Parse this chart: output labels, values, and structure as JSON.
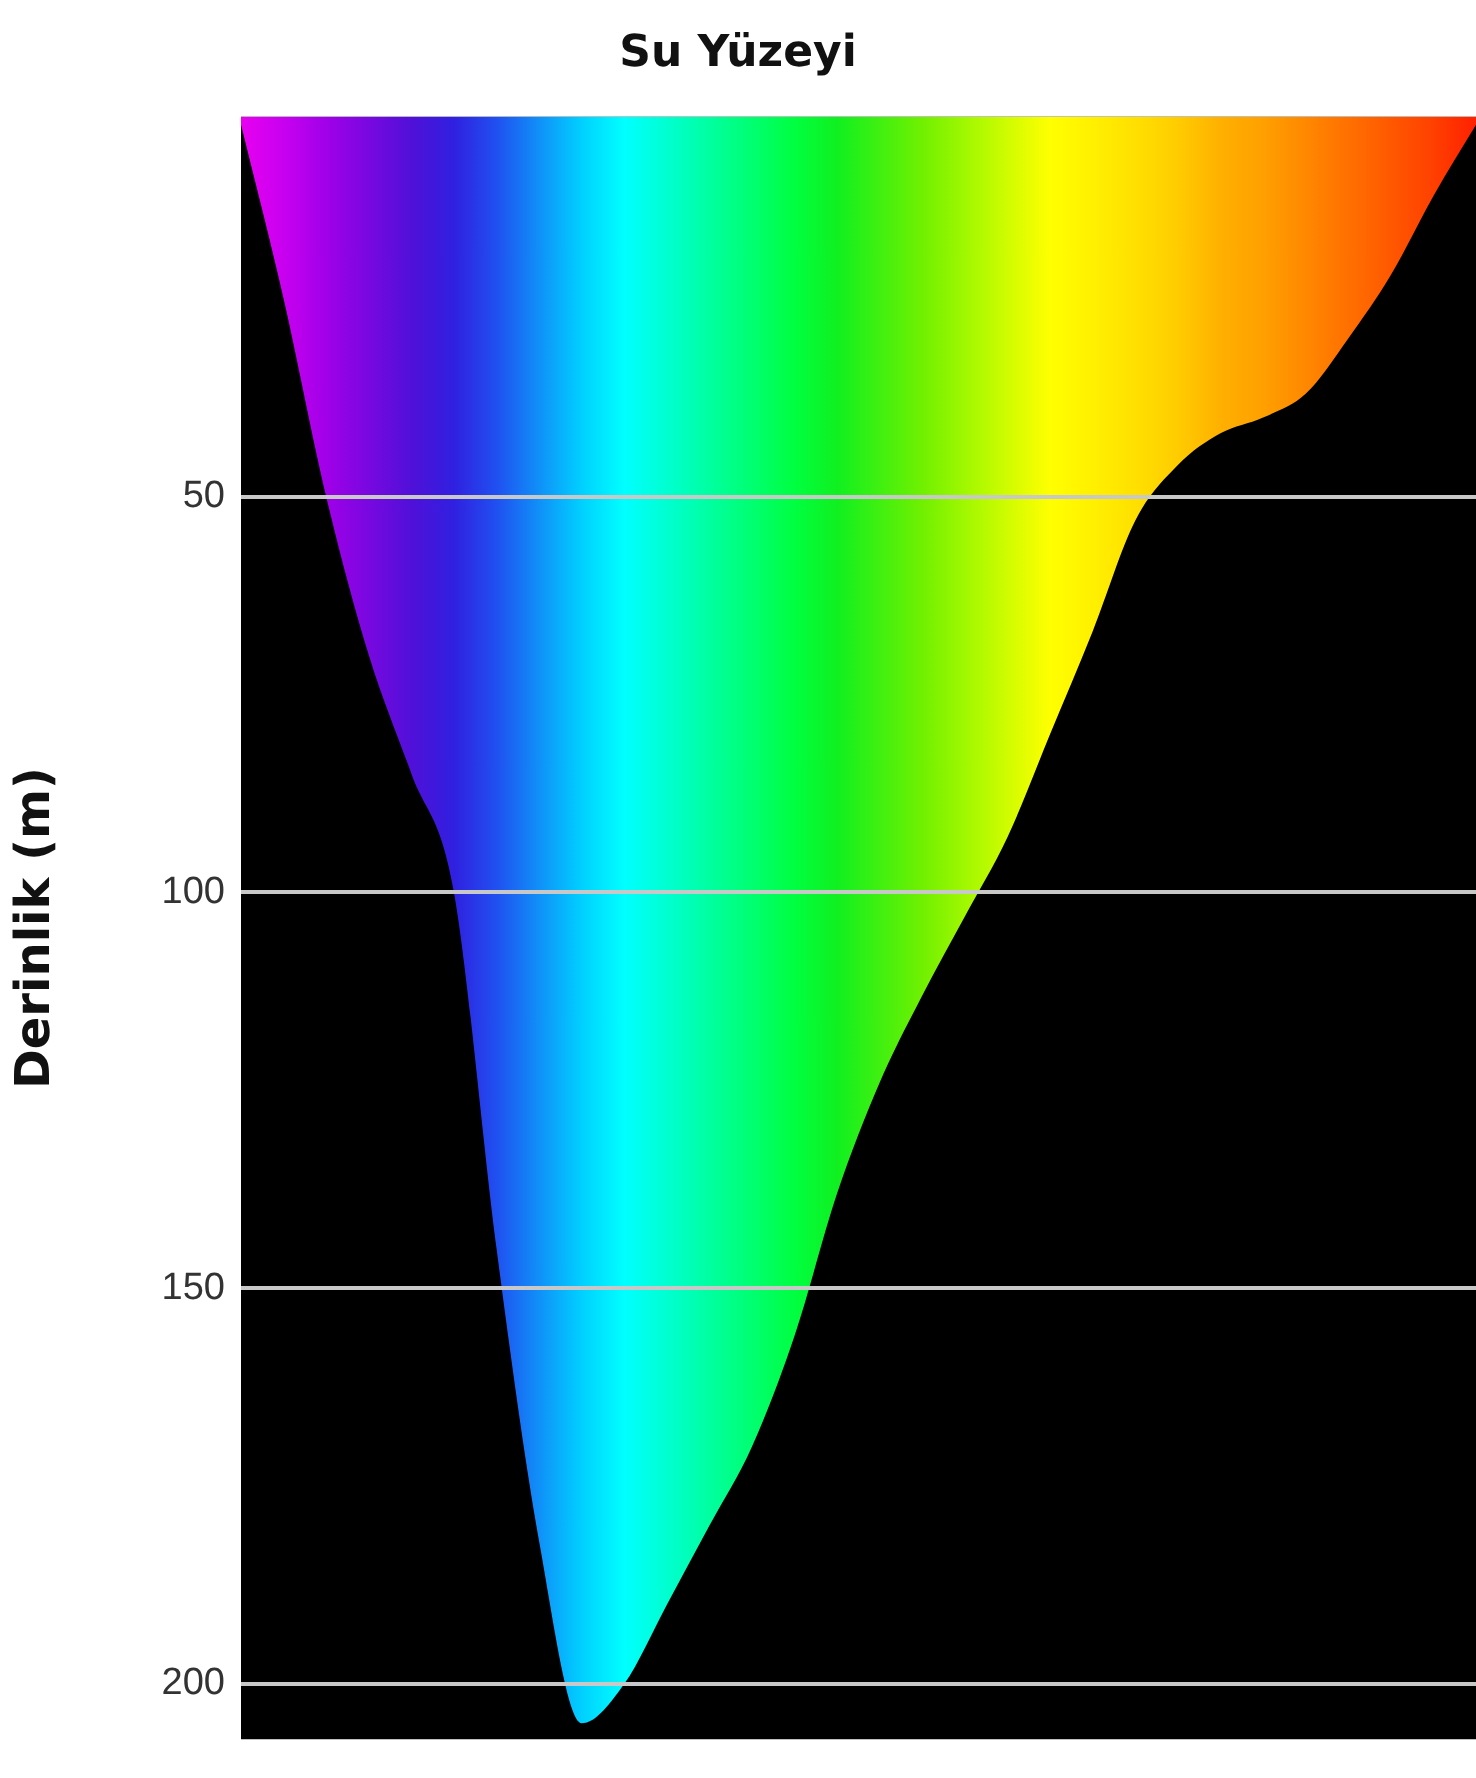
{
  "chart_data": {
    "type": "area",
    "title": "Su Yüzeyi",
    "ylabel": "Derinlik (m)",
    "categories": [
      null,
      null,
      null,
      null,
      null,
      null,
      null,
      null,
      null,
      null,
      null,
      null,
      null,
      null,
      null,
      null,
      null,
      null,
      null,
      null,
      null,
      null,
      null,
      null,
      null,
      null,
      null,
      null,
      null,
      null
    ],
    "values": [
      3,
      25,
      50,
      70,
      85,
      100,
      145,
      182,
      205,
      200,
      190,
      180,
      170,
      156,
      138,
      124,
      113,
      103,
      93,
      80,
      67,
      53,
      46,
      42,
      40,
      37,
      30,
      22,
      12,
      3
    ],
    "colors": [
      "#e800f0",
      "#c800f0",
      "#a000e8",
      "#7808e0",
      "#5010d8",
      "#3020e0",
      "#2050f0",
      "#1090f8",
      "#00d0ff",
      "#00ffff",
      "#00ffd0",
      "#00ffa0",
      "#00ff70",
      "#00ff40",
      "#10f020",
      "#40f010",
      "#70f000",
      "#a0f800",
      "#d0fc00",
      "#ffff00",
      "#fff000",
      "#ffe000",
      "#ffcc00",
      "#ffb000",
      "#ffa000",
      "#ff8800",
      "#ff7000",
      "#ff5800",
      "#ff4000",
      "#ff2000"
    ],
    "ylim": [
      207,
      2
    ],
    "yticks": [
      50,
      100,
      150,
      200
    ],
    "grid": "y"
  }
}
